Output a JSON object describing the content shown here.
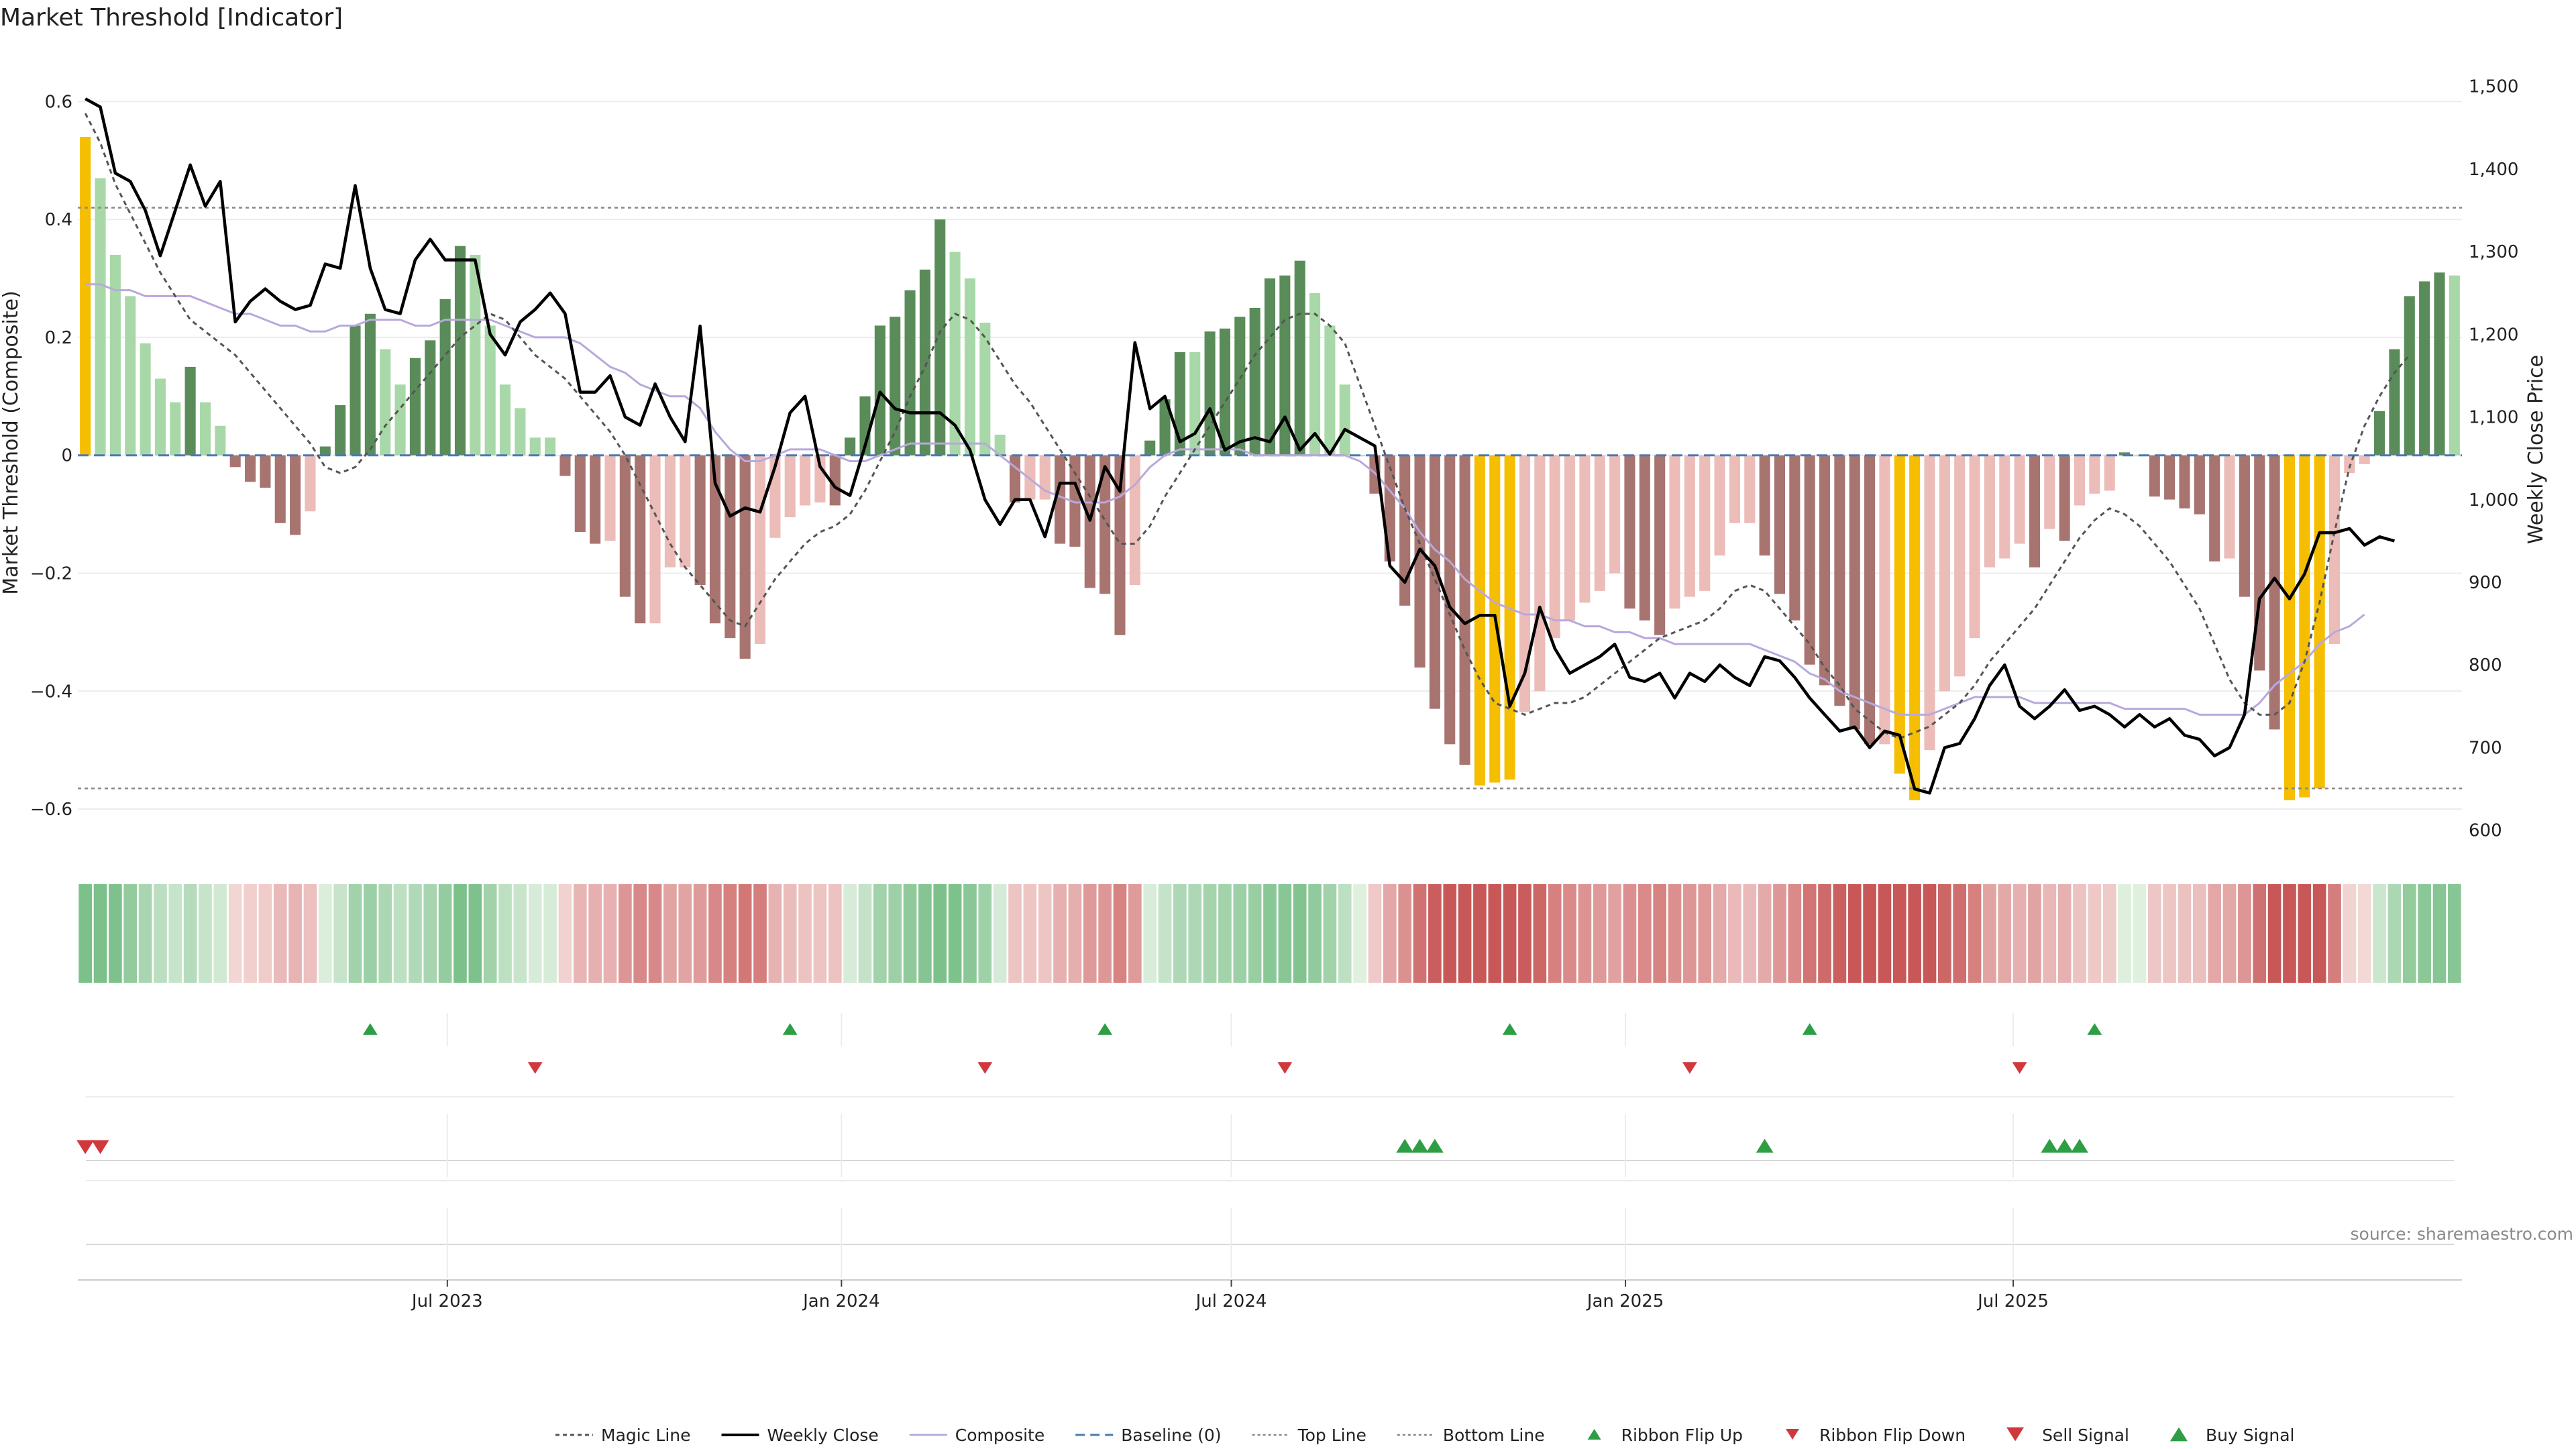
{
  "title": "Market Threshold [Indicator]",
  "source": "source: sharemaestro.com",
  "colors": {
    "above_light": "#a8d8a8",
    "above_dark": "#5a8c5a",
    "below_light": "#ecbcb8",
    "below_dark": "#a87470",
    "extreme": "#f5be00",
    "close": "#000000",
    "composite": "#b9a8dc",
    "magic": "#555555",
    "baseline": "#4a7ab0",
    "threshold": "#888888",
    "buy": "#2e9e44",
    "sell": "#d0383c"
  },
  "chart_data": {
    "type": "bar",
    "x_start": "2023-01-13",
    "x_step_days": 7,
    "x_ticks": [
      {
        "date": "2023-07-01",
        "label": "Jul 2023"
      },
      {
        "date": "2024-01-01",
        "label": "Jan 2024"
      },
      {
        "date": "2024-07-01",
        "label": "Jul 2024"
      },
      {
        "date": "2025-01-01",
        "label": "Jan 2025"
      },
      {
        "date": "2025-07-01",
        "label": "Jul 2025"
      }
    ],
    "left_axis": {
      "label": "Market Threshold (Composite)",
      "ylim": [
        -0.65,
        0.63
      ],
      "ticks": [
        0.6,
        0.4,
        0.2,
        0,
        -0.2,
        -0.4,
        -0.6
      ],
      "tick_labels": [
        "0.6",
        "0.4",
        "0.2",
        "0",
        "−0.2",
        "−0.4",
        "−0.6"
      ]
    },
    "right_axis": {
      "label": "Weekly Close Price",
      "ylim": [
        590,
        1503
      ],
      "ticks": [
        1500,
        1400,
        1300,
        1200,
        1100,
        1000,
        900,
        800,
        700,
        600
      ],
      "tick_labels": [
        "1,500",
        "1,400",
        "1,300",
        "1,200",
        "1,100",
        "1,000",
        "900",
        "800",
        "700",
        "600"
      ]
    },
    "top_line": 0.42,
    "bottom_line": -0.565,
    "baseline": 0,
    "series": [
      {
        "name": "Composite bars",
        "values": [
          0.54,
          0.47,
          0.34,
          0.27,
          0.19,
          0.13,
          0.09,
          0.15,
          0.09,
          0.05,
          -0.02,
          -0.045,
          -0.055,
          -0.115,
          -0.135,
          -0.095,
          0.015,
          0.085,
          0.22,
          0.24,
          0.18,
          0.12,
          0.165,
          0.195,
          0.265,
          0.355,
          0.34,
          0.22,
          0.12,
          0.08,
          0.03,
          0.03,
          -0.035,
          -0.13,
          -0.15,
          -0.145,
          -0.24,
          -0.285,
          -0.285,
          -0.19,
          -0.19,
          -0.22,
          -0.285,
          -0.31,
          -0.345,
          -0.32,
          -0.14,
          -0.105,
          -0.085,
          -0.08,
          -0.085,
          0.03,
          0.1,
          0.22,
          0.235,
          0.28,
          0.315,
          0.4,
          0.345,
          0.3,
          0.225,
          0.035,
          -0.08,
          -0.075,
          -0.075,
          -0.15,
          -0.155,
          -0.225,
          -0.235,
          -0.305,
          -0.22,
          0.025,
          0.095,
          0.175,
          0.175,
          0.21,
          0.215,
          0.235,
          0.25,
          0.3,
          0.305,
          0.33,
          0.275,
          0.22,
          0.12,
          0.0,
          -0.065,
          -0.18,
          -0.255,
          -0.36,
          -0.43,
          -0.49,
          -0.525,
          -0.56,
          -0.555,
          -0.55,
          -0.435,
          -0.4,
          -0.31,
          -0.28,
          -0.25,
          -0.23,
          -0.2,
          -0.26,
          -0.28,
          -0.305,
          -0.26,
          -0.24,
          -0.23,
          -0.17,
          -0.115,
          -0.115,
          -0.17,
          -0.235,
          -0.28,
          -0.355,
          -0.39,
          -0.425,
          -0.465,
          -0.49,
          -0.49,
          -0.54,
          -0.585,
          -0.5,
          -0.4,
          -0.375,
          -0.31,
          -0.19,
          -0.175,
          -0.15,
          -0.19,
          -0.125,
          -0.145,
          -0.085,
          -0.065,
          -0.06,
          0.005,
          0.0,
          -0.07,
          -0.075,
          -0.09,
          -0.1,
          -0.18,
          -0.175,
          -0.24,
          -0.365,
          -0.465,
          -0.585,
          -0.58,
          -0.565,
          -0.32,
          -0.03,
          -0.015,
          0.075,
          0.18,
          0.27,
          0.295,
          0.31,
          0.305
        ]
      },
      {
        "name": "Magic Line",
        "values": [
          0.58,
          0.53,
          0.46,
          0.41,
          0.36,
          0.31,
          0.27,
          0.23,
          0.21,
          0.19,
          0.17,
          0.14,
          0.11,
          0.08,
          0.05,
          0.02,
          -0.02,
          -0.03,
          -0.02,
          0.01,
          0.05,
          0.08,
          0.11,
          0.14,
          0.17,
          0.2,
          0.22,
          0.24,
          0.23,
          0.2,
          0.17,
          0.15,
          0.13,
          0.1,
          0.07,
          0.04,
          -0.0,
          -0.05,
          -0.1,
          -0.15,
          -0.19,
          -0.22,
          -0.25,
          -0.28,
          -0.29,
          -0.25,
          -0.21,
          -0.18,
          -0.15,
          -0.13,
          -0.12,
          -0.1,
          -0.06,
          -0.01,
          0.04,
          0.1,
          0.15,
          0.21,
          0.24,
          0.23,
          0.2,
          0.16,
          0.12,
          0.09,
          0.05,
          0.01,
          -0.03,
          -0.07,
          -0.11,
          -0.15,
          -0.15,
          -0.12,
          -0.07,
          -0.03,
          0.01,
          0.05,
          0.09,
          0.13,
          0.17,
          0.2,
          0.23,
          0.24,
          0.24,
          0.22,
          0.19,
          0.12,
          0.05,
          -0.02,
          -0.09,
          -0.15,
          -0.21,
          -0.27,
          -0.33,
          -0.38,
          -0.42,
          -0.43,
          -0.44,
          -0.43,
          -0.42,
          -0.42,
          -0.41,
          -0.39,
          -0.37,
          -0.35,
          -0.33,
          -0.31,
          -0.3,
          -0.29,
          -0.28,
          -0.26,
          -0.23,
          -0.22,
          -0.23,
          -0.26,
          -0.29,
          -0.32,
          -0.36,
          -0.39,
          -0.43,
          -0.45,
          -0.47,
          -0.48,
          -0.47,
          -0.46,
          -0.44,
          -0.42,
          -0.39,
          -0.35,
          -0.32,
          -0.29,
          -0.26,
          -0.22,
          -0.18,
          -0.14,
          -0.11,
          -0.09,
          -0.1,
          -0.12,
          -0.15,
          -0.18,
          -0.22,
          -0.26,
          -0.32,
          -0.38,
          -0.42,
          -0.44,
          -0.44,
          -0.42,
          -0.35,
          -0.25,
          -0.13,
          -0.02,
          0.05,
          0.1,
          0.14,
          0.17
        ]
      },
      {
        "name": "Weekly Close",
        "values": [
          1485,
          1475,
          1395,
          1385,
          1350,
          1295,
          1350,
          1405,
          1355,
          1385,
          1215,
          1240,
          1255,
          1240,
          1230,
          1235,
          1285,
          1280,
          1380,
          1280,
          1230,
          1225,
          1290,
          1315,
          1290,
          1290,
          1290,
          1200,
          1175,
          1215,
          1230,
          1250,
          1225,
          1130,
          1130,
          1150,
          1100,
          1090,
          1140,
          1100,
          1070,
          1210,
          1020,
          980,
          990,
          985,
          1040,
          1105,
          1125,
          1040,
          1015,
          1005,
          1065,
          1130,
          1110,
          1105,
          1105,
          1105,
          1090,
          1060,
          1000,
          970,
          1000,
          1000,
          955,
          1020,
          1020,
          975,
          1040,
          1010,
          1190,
          1110,
          1125,
          1070,
          1080,
          1110,
          1060,
          1070,
          1075,
          1070,
          1100,
          1060,
          1080,
          1055,
          1085,
          1075,
          1065,
          920,
          900,
          940,
          920,
          870,
          850,
          860,
          860,
          750,
          790,
          870,
          820,
          790,
          800,
          810,
          825,
          785,
          780,
          790,
          760,
          790,
          780,
          800,
          785,
          775,
          810,
          805,
          785,
          760,
          740,
          720,
          725,
          700,
          720,
          715,
          650,
          645,
          700,
          705,
          735,
          775,
          800,
          750,
          735,
          750,
          770,
          745,
          750,
          740,
          725,
          740,
          725,
          735,
          715,
          710,
          690,
          700,
          740,
          880,
          905,
          880,
          910,
          960,
          960,
          965,
          945,
          955,
          950
        ]
      },
      {
        "name": "Composite",
        "values": [
          0.29,
          0.29,
          0.28,
          0.28,
          0.27,
          0.27,
          0.27,
          0.27,
          0.26,
          0.25,
          0.24,
          0.24,
          0.23,
          0.22,
          0.22,
          0.21,
          0.21,
          0.22,
          0.22,
          0.23,
          0.23,
          0.23,
          0.22,
          0.22,
          0.23,
          0.23,
          0.23,
          0.23,
          0.22,
          0.21,
          0.2,
          0.2,
          0.2,
          0.19,
          0.17,
          0.15,
          0.14,
          0.12,
          0.11,
          0.1,
          0.1,
          0.08,
          0.04,
          0.01,
          -0.01,
          -0.01,
          0.0,
          0.01,
          0.01,
          0.01,
          0.0,
          -0.01,
          -0.01,
          0.0,
          0.01,
          0.02,
          0.02,
          0.02,
          0.02,
          0.02,
          0.02,
          0.0,
          -0.02,
          -0.04,
          -0.06,
          -0.07,
          -0.08,
          -0.08,
          -0.08,
          -0.07,
          -0.05,
          -0.02,
          0.0,
          0.01,
          0.01,
          0.01,
          0.01,
          0.01,
          0.0,
          0.0,
          0.0,
          0.0,
          0.0,
          0.0,
          0.0,
          -0.01,
          -0.03,
          -0.06,
          -0.09,
          -0.13,
          -0.16,
          -0.18,
          -0.21,
          -0.23,
          -0.25,
          -0.26,
          -0.27,
          -0.27,
          -0.28,
          -0.28,
          -0.29,
          -0.29,
          -0.3,
          -0.3,
          -0.31,
          -0.31,
          -0.32,
          -0.32,
          -0.32,
          -0.32,
          -0.32,
          -0.32,
          -0.33,
          -0.34,
          -0.35,
          -0.37,
          -0.38,
          -0.4,
          -0.41,
          -0.42,
          -0.43,
          -0.44,
          -0.44,
          -0.44,
          -0.43,
          -0.42,
          -0.41,
          -0.41,
          -0.41,
          -0.41,
          -0.42,
          -0.42,
          -0.42,
          -0.42,
          -0.42,
          -0.42,
          -0.43,
          -0.43,
          -0.43,
          -0.43,
          -0.43,
          -0.44,
          -0.44,
          -0.44,
          -0.44,
          -0.42,
          -0.39,
          -0.37,
          -0.35,
          -0.32,
          -0.3,
          -0.29,
          -0.27
        ]
      }
    ],
    "ribbon": {
      "description": "weekly composite color strip",
      "source": "Composite bars"
    },
    "ribbon_flip_up_weeks": [
      19,
      47,
      68,
      95,
      115,
      134
    ],
    "ribbon_flip_down_weeks": [
      30,
      60,
      80,
      107,
      129
    ],
    "sell_signal_weeks": [
      0,
      1
    ],
    "buy_signal_weeks": [
      88,
      89,
      90,
      112,
      131,
      132,
      133
    ],
    "legend": [
      {
        "key": "magic",
        "label": "Magic Line"
      },
      {
        "key": "close",
        "label": "Weekly Close"
      },
      {
        "key": "composite",
        "label": "Composite"
      },
      {
        "key": "baseline",
        "label": "Baseline (0)"
      },
      {
        "key": "top",
        "label": "Top Line"
      },
      {
        "key": "bottom",
        "label": "Bottom Line"
      },
      {
        "key": "flip_up",
        "label": "Ribbon Flip Up"
      },
      {
        "key": "flip_down",
        "label": "Ribbon Flip Down"
      },
      {
        "key": "sell",
        "label": "Sell Signal"
      },
      {
        "key": "buy",
        "label": "Buy Signal"
      }
    ]
  }
}
